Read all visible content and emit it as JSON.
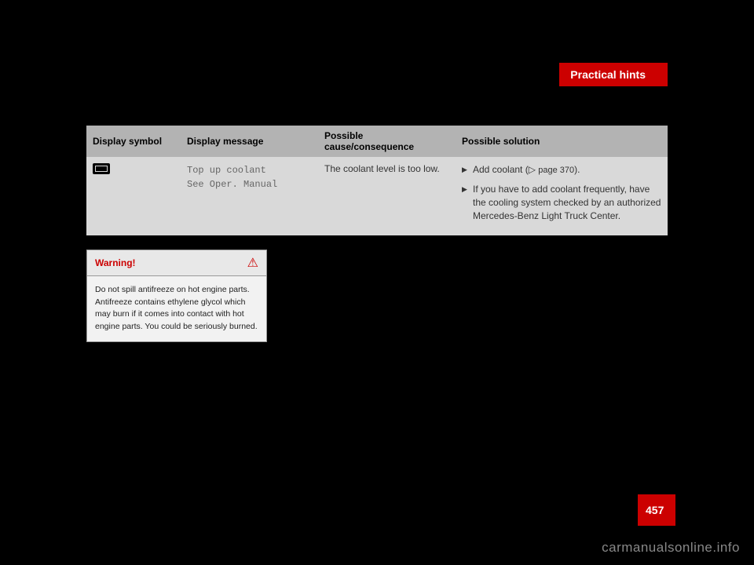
{
  "header": {
    "section_title": "Practical hints",
    "bg_color": "#cc0000",
    "text_color": "#ffffff"
  },
  "table": {
    "headers": {
      "symbol": "Display symbol",
      "message": "Display message",
      "cause": "Possible cause/consequence",
      "solution": "Possible solution"
    },
    "row": {
      "message_line1": "Top up coolant",
      "message_line2": "See Oper. Manual",
      "cause": "The coolant level is too low.",
      "solution1_pre": "Add coolant (",
      "solution1_ref": "page 370",
      "solution1_post": ").",
      "solution2": "If you have to add coolant frequently, have the cooling system checked by an authorized Mercedes-Benz Light Truck Center."
    },
    "header_bg": "#b3b3b3",
    "cell_bg": "#d9d9d9"
  },
  "warning": {
    "title": "Warning!",
    "icon": "⚠",
    "body": "Do not spill antifreeze on hot engine parts. Antifreeze contains ethylene glycol which may burn if it comes into contact with hot engine parts. You could be seriously burned.",
    "title_color": "#cc0000"
  },
  "page_number": "457",
  "watermark": "carmanualsonline.info",
  "colors": {
    "page_bg": "#000000",
    "accent": "#cc0000"
  }
}
